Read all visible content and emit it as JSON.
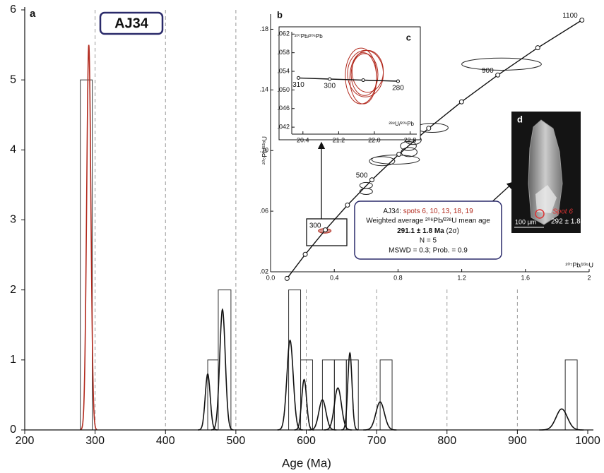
{
  "chart_data": {
    "type": "histogram-pdp",
    "panel_label": "a",
    "sample": "AJ34",
    "xlabel": "Age (Ma)",
    "xlim": [
      200,
      1000
    ],
    "ylim": [
      0,
      6
    ],
    "xticks": [
      200,
      300,
      400,
      500,
      600,
      700,
      800,
      900,
      1000
    ],
    "yticks": [
      0,
      1,
      2,
      3,
      4,
      5,
      6
    ],
    "dashed_lines": [
      300,
      400,
      500,
      600,
      700,
      800,
      900
    ],
    "bars": {
      "x0": [
        279,
        460,
        475,
        575,
        592,
        623,
        640,
        657,
        705,
        968
      ],
      "x1": [
        296,
        475,
        493,
        592,
        609,
        640,
        657,
        674,
        722,
        985
      ],
      "counts": [
        5,
        1,
        2,
        2,
        1,
        1,
        1,
        1,
        1,
        1
      ]
    },
    "curves": [
      {
        "color": "#111111",
        "mode": [
          460,
          481,
          577,
          597,
          623,
          645,
          662,
          705,
          963
        ],
        "height": [
          0.8,
          1.72,
          1.28,
          0.72,
          0.43,
          0.6,
          1.1,
          0.4,
          0.3
        ],
        "sigma": [
          3.5,
          4,
          4.5,
          3.5,
          5,
          5,
          3,
          6,
          8
        ]
      },
      {
        "color": "#b22a1e",
        "mode": [
          291
        ],
        "height": [
          5.5
        ],
        "sigma": [
          3
        ]
      }
    ],
    "inset_b": {
      "panel_label": "b",
      "xlabel": "²⁰⁷Pb/²³⁵U",
      "ylabel": "²⁰⁶Pb/²³⁸U",
      "xlim": [
        0,
        2
      ],
      "ylim": [
        0.02,
        0.19
      ],
      "xticks": [
        {
          "value": 0,
          "label": "0.0"
        },
        0.4,
        0.8,
        1.2,
        1.6,
        2
      ],
      "yticks": [
        {
          "value": 0.02,
          "label": ".02"
        },
        {
          "value": 0.06,
          "label": ".06"
        },
        {
          "value": 0.1,
          "label": ".10"
        },
        {
          "value": 0.14,
          "label": ".14"
        },
        {
          "value": 0.18,
          "label": ".18"
        }
      ],
      "concordia": {
        "x": [
          0.1035,
          0.2177,
          0.3437,
          0.4828,
          0.6362,
          0.8056,
          0.9925,
          1.1987,
          1.4265,
          1.6774,
          1.9545
        ],
        "y": [
          0.01563,
          0.03151,
          0.04764,
          0.06402,
          0.08065,
          0.09754,
          0.1147,
          0.13214,
          0.14982,
          0.16782,
          0.18605
        ],
        "labels": [
          null,
          null,
          "300",
          null,
          "500",
          null,
          null,
          null,
          "900",
          null,
          "1100"
        ]
      },
      "ellipses": {
        "x": [
          1.45,
          1.015,
          0.896,
          0.865,
          0.87,
          0.785,
          0.7,
          0.6,
          0.6,
          0.34
        ],
        "y": [
          0.157,
          0.115,
          0.107,
          0.103,
          0.099,
          0.094,
          0.093,
          0.077,
          0.073,
          0.047
        ],
        "rx": [
          0.25,
          0.1,
          0.05,
          0.05,
          0.05,
          0.15,
          0.08,
          0.04,
          0.04,
          0.04
        ],
        "ry": [
          0.004,
          0.003,
          0.003,
          0.003,
          0.003,
          0.003,
          0.003,
          0.002,
          0.002,
          0.0015
        ],
        "colors": [
          "#222",
          "#222",
          "#222",
          "#222",
          "#222",
          "#222",
          "#222",
          "#222",
          "#222",
          "#b22a1e"
        ]
      }
    },
    "inset_c": {
      "panel_label": "c",
      "xlabel": "²³⁸U/²⁰⁶Pb",
      "ylabel": "²⁰⁷Pb/²⁰⁶Pb",
      "xlim": [
        20.15,
        22.95
      ],
      "ylim": [
        0.0405,
        0.0625
      ],
      "xticks": [
        20.4,
        21.2,
        {
          "value": 22.0,
          "label": "22.0"
        },
        22.8
      ],
      "yticks": [
        {
          "value": 0.042,
          "label": ".042"
        },
        {
          "value": 0.046,
          "label": ".046"
        },
        {
          "value": 0.05,
          "label": ".050"
        },
        {
          "value": 0.054,
          "label": ".054"
        },
        {
          "value": 0.058,
          "label": ".058"
        },
        {
          "value": 0.062,
          "label": ".062"
        }
      ],
      "concordia": {
        "x": [
          20.3,
          21.0,
          21.75,
          22.53
        ],
        "y": [
          0.05258,
          0.05233,
          0.0521,
          0.05188
        ],
        "labels": [
          "310",
          "300",
          null,
          "280"
        ]
      },
      "ellipses": {
        "x": [
          21.7,
          21.8,
          21.75,
          21.85,
          21.78
        ],
        "y": [
          0.053,
          0.0535,
          0.0525,
          0.054,
          0.0533
        ],
        "rx": [
          0.35,
          0.4,
          0.3,
          0.35,
          0.3
        ],
        "ry": [
          0.006,
          0.005,
          0.0055,
          0.0045,
          0.0045
        ]
      }
    },
    "info_box": {
      "sample": "AJ34: ",
      "spots": "spots 6, 10, 13, 18, 19",
      "line2": "Weighted average ²⁰⁶Pb/²³⁸U mean age",
      "age": "291.1 ± 1.8 Ma",
      "age_note": " (2σ)",
      "n": "N = 5",
      "stats": "MSWD = 0.3; Prob. = 0.9"
    },
    "image_d": {
      "panel_label": "d",
      "spot": "Spot 6",
      "spot_age": "292 ± 1.8",
      "scale": "100 µm"
    }
  }
}
